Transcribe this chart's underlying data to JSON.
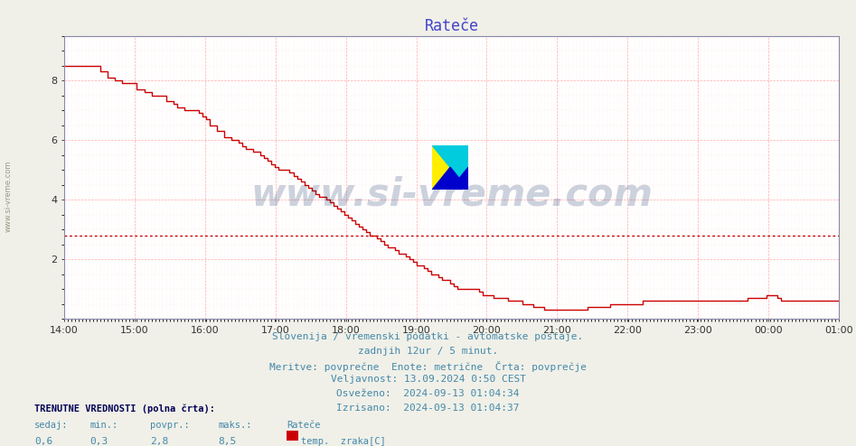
{
  "title": "Rateče",
  "title_color": "#4444cc",
  "title_fontsize": 12,
  "bg_color": "#f0f0e8",
  "plot_bg_color": "#ffffff",
  "grid_color_major": "#ffaaaa",
  "grid_color_minor": "#ffdddd",
  "line_color": "#cc0000",
  "avg_line_color": "#cc0000",
  "avg_value": 2.8,
  "ylim": [
    0,
    9.5
  ],
  "yticks": [
    2,
    4,
    6,
    8
  ],
  "xtick_labels": [
    "14:00",
    "15:00",
    "16:00",
    "17:00",
    "18:00",
    "19:00",
    "20:00",
    "21:00",
    "22:00",
    "23:00",
    "00:00",
    "01:00"
  ],
  "footer_lines": [
    "Slovenija / vremenski podatki - avtomatske postaje.",
    "zadnjih 12ur / 5 minut.",
    "Meritve: povprečne  Enote: metrične  Črta: povprečje",
    "Veljavnost: 13.09.2024 0:50 CEST",
    "Osveženo:  2024-09-13 01:04:34",
    "Izrisano:  2024-09-13 01:04:37"
  ],
  "footer_color": "#4488aa",
  "footer_fontsize": 8.0,
  "legend_title": "TRENUTNE VREDNOSTI (polna črta):",
  "legend_col_headers": [
    "sedaj:",
    "min.:",
    "povpr.:",
    "maks.:",
    "Rateče"
  ],
  "legend_col_values": [
    "0,6",
    "0,3",
    "2,8",
    "8,5"
  ],
  "legend_series_label": "temp.  zraka[C]",
  "legend_series_color": "#cc0000",
  "watermark_text": "www.si-vreme.com",
  "watermark_color": "#1a3a6a",
  "watermark_alpha": 0.22,
  "left_label": "www.si-vreme.com",
  "left_label_color": "#999988",
  "series": [
    8.5,
    8.5,
    8.5,
    8.5,
    8.5,
    8.5,
    8.5,
    8.5,
    8.5,
    8.5,
    8.3,
    8.3,
    8.1,
    8.1,
    8.0,
    8.0,
    7.9,
    7.9,
    7.9,
    7.9,
    7.7,
    7.7,
    7.6,
    7.6,
    7.5,
    7.5,
    7.5,
    7.5,
    7.3,
    7.3,
    7.2,
    7.1,
    7.1,
    7.0,
    7.0,
    7.0,
    7.0,
    6.9,
    6.8,
    6.7,
    6.5,
    6.5,
    6.3,
    6.3,
    6.1,
    6.1,
    6.0,
    6.0,
    5.9,
    5.8,
    5.7,
    5.7,
    5.6,
    5.6,
    5.5,
    5.4,
    5.3,
    5.2,
    5.1,
    5.0,
    5.0,
    5.0,
    4.9,
    4.8,
    4.7,
    4.6,
    4.5,
    4.4,
    4.3,
    4.2,
    4.1,
    4.1,
    4.0,
    3.9,
    3.8,
    3.7,
    3.6,
    3.5,
    3.4,
    3.3,
    3.2,
    3.1,
    3.0,
    2.9,
    2.8,
    2.8,
    2.7,
    2.6,
    2.5,
    2.4,
    2.4,
    2.3,
    2.2,
    2.2,
    2.1,
    2.0,
    1.9,
    1.8,
    1.8,
    1.7,
    1.6,
    1.5,
    1.5,
    1.4,
    1.3,
    1.3,
    1.2,
    1.1,
    1.0,
    1.0,
    1.0,
    1.0,
    1.0,
    1.0,
    0.9,
    0.8,
    0.8,
    0.8,
    0.7,
    0.7,
    0.7,
    0.7,
    0.6,
    0.6,
    0.6,
    0.6,
    0.5,
    0.5,
    0.5,
    0.4,
    0.4,
    0.4,
    0.3,
    0.3,
    0.3,
    0.3,
    0.3,
    0.3,
    0.3,
    0.3,
    0.3,
    0.3,
    0.3,
    0.3,
    0.4,
    0.4,
    0.4,
    0.4,
    0.4,
    0.4,
    0.5,
    0.5,
    0.5,
    0.5,
    0.5,
    0.5,
    0.5,
    0.5,
    0.5,
    0.6,
    0.6,
    0.6,
    0.6,
    0.6,
    0.6,
    0.6,
    0.6,
    0.6,
    0.6,
    0.6,
    0.6,
    0.6,
    0.6,
    0.6,
    0.6,
    0.6,
    0.6,
    0.6,
    0.6,
    0.6,
    0.6,
    0.6,
    0.6,
    0.6,
    0.6,
    0.6,
    0.6,
    0.6,
    0.7,
    0.7,
    0.7,
    0.7,
    0.7,
    0.8,
    0.8,
    0.8,
    0.7,
    0.6,
    0.6,
    0.6,
    0.6,
    0.6,
    0.6,
    0.6,
    0.6,
    0.6,
    0.6,
    0.6,
    0.6,
    0.6,
    0.6,
    0.6,
    0.6,
    0.6
  ]
}
